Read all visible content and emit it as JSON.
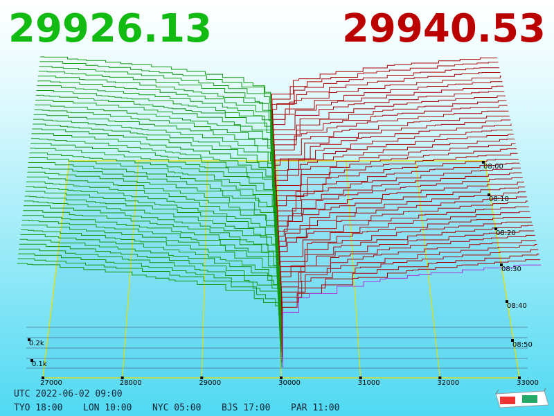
{
  "bid_price": "29926.13",
  "ask_price": "29940.53",
  "price_axis": [
    "27000",
    "28000",
    "29000",
    "30000",
    "31000",
    "32000",
    "33000"
  ],
  "depth_axis": [
    "0.2k",
    "0.1k"
  ],
  "time_axis": [
    "08:00",
    "08:10",
    "08:20",
    "08:30",
    "08:40",
    "08:50"
  ],
  "utc_time": "UTC 2022-06-02 09:00",
  "zones": [
    "TYO 18:00",
    "LON 10:00",
    "NYC 05:00",
    "BJS 17:00",
    "PAR 11:00"
  ]
}
